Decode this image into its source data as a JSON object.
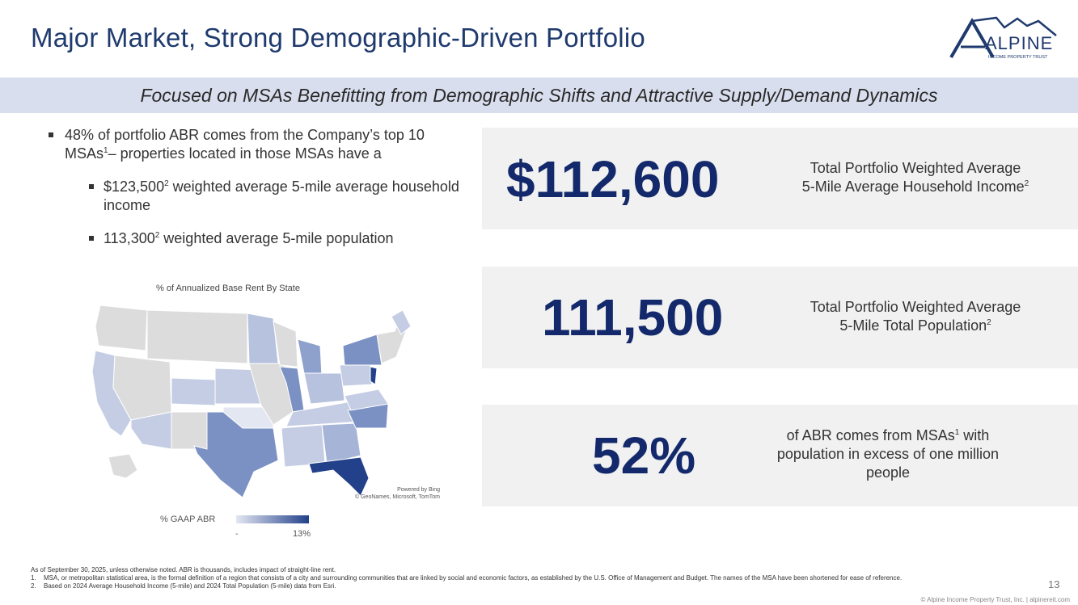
{
  "title": "Major Market, Strong Demographic-Driven Portfolio",
  "logo": {
    "name": "ALPINE",
    "tagline": "INCOME PROPERTY TRUST"
  },
  "banner": "Focused on MSAs Benefitting from Demographic Shifts and Attractive Supply/Demand Dynamics",
  "bullets": {
    "main_a": "48% of portfolio ABR comes from the Company’s top 10 MSAs",
    "main_sup": "1",
    "main_b": "– properties located in those MSAs have a",
    "sub1_a": "$123,500",
    "sub1_sup": "2",
    "sub1_b": " weighted average 5-mile average household income",
    "sub2_a": "113,300",
    "sub2_sup": "2",
    "sub2_b": " weighted average 5-mile population"
  },
  "map": {
    "title": "% of Annualized Base Rent By State",
    "powered_by": "Powered by Bing",
    "attribution": "© GeoNames, Microsoft, TomTom",
    "legend_label": "% GAAP ABR",
    "legend_min": "-",
    "legend_max": "13%"
  },
  "stats": [
    {
      "value": "$112,600",
      "desc_line1": "Total Portfolio Weighted Average",
      "desc_line2": "5-Mile Average Household Income",
      "sup": "2"
    },
    {
      "value": "111,500",
      "desc_line1": "Total Portfolio Weighted Average",
      "desc_line2": "5-Mile Total Population",
      "sup": "2"
    },
    {
      "value": "52%",
      "desc_a": "of ABR comes from MSAs",
      "sup": "1",
      "desc_b": " with population in excess of one million people"
    }
  ],
  "footnotes": {
    "intro": "As of September 30, 2025, unless otherwise noted. ABR is thousands, includes impact of straight-line rent.",
    "n1_num": "1.",
    "n1": "MSA, or metropolitan statistical area, is the formal definition of a region that consists of a city and surrounding communities that are linked by social and economic factors, as established by the U.S. Office of Management and Budget. The names of the MSA have been shortened for ease of reference.",
    "n2_num": "2.",
    "n2": "Based on 2024 Average Household Income (5-mile) and 2024 Total Population (5-mile) data from Esri."
  },
  "page_number": "13",
  "copyright": "© Alpine Income Property Trust, Inc.  |  alpinereit.com",
  "colors": {
    "navy": "#13296b",
    "title": "#1f3a6e",
    "banner": "#d9deee",
    "panel": "#f1f1f1",
    "map_gray": "#dcdcdc"
  }
}
